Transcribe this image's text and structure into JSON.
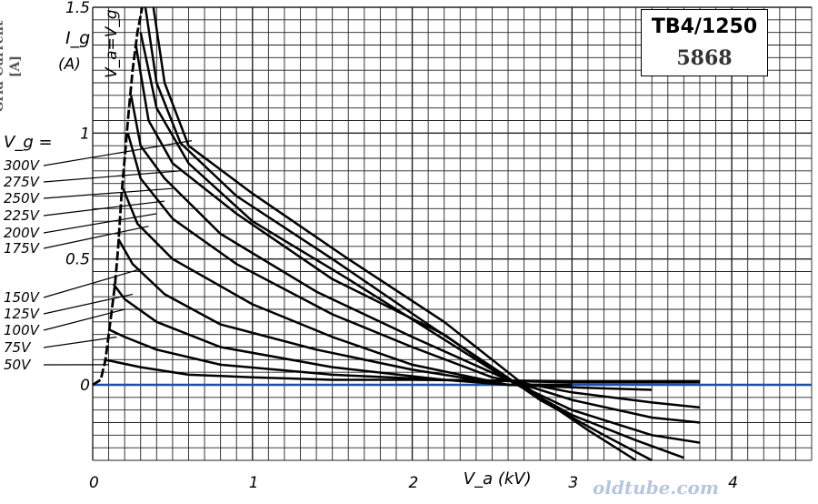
{
  "tube": {
    "type": "TB4/1250",
    "number": "5868"
  },
  "y_axis_label": {
    "line1": "Grid Current",
    "line2": "[A]"
  },
  "watermark": "oldtube.com",
  "colors": {
    "grid": "#222222",
    "curve": "#000000",
    "zero_line": "#1f4fa8",
    "watermark": "#b8c6dc"
  },
  "chart_data": {
    "type": "line",
    "title": "",
    "xlabel": "V_a (kV)",
    "ylabel": "I_g (A)",
    "xlim": [
      0,
      4.5
    ],
    "ylim": [
      -0.3,
      1.5
    ],
    "x_ticks": [
      {
        "v": 0,
        "t": "0"
      },
      {
        "v": 1,
        "t": "1"
      },
      {
        "v": 2,
        "t": "2"
      },
      {
        "v": 3,
        "t": "3"
      },
      {
        "v": 4,
        "t": "4"
      }
    ],
    "y_ticks": [
      {
        "v": 0,
        "t": "0"
      },
      {
        "v": 0.5,
        "t": "0.5"
      },
      {
        "v": 1,
        "t": "1"
      },
      {
        "v": 1.5,
        "t": "1.5"
      }
    ],
    "grid": true,
    "zero_line": true,
    "vg_header": "V_g =",
    "envelope_label": "V_a=V_g",
    "envelope": [
      [
        0,
        0
      ],
      [
        0.05,
        0.02
      ],
      [
        0.08,
        0.1
      ],
      [
        0.1,
        0.2
      ],
      [
        0.12,
        0.3
      ],
      [
        0.14,
        0.4
      ],
      [
        0.16,
        0.55
      ],
      [
        0.18,
        0.75
      ],
      [
        0.2,
        0.9
      ],
      [
        0.22,
        1.05
      ],
      [
        0.25,
        1.25
      ],
      [
        0.28,
        1.4
      ],
      [
        0.31,
        1.5
      ]
    ],
    "series": [
      {
        "name": "300V",
        "points": [
          [
            0.38,
            1.5
          ],
          [
            0.45,
            1.2
          ],
          [
            0.6,
            0.95
          ],
          [
            1.0,
            0.76
          ],
          [
            1.6,
            0.5
          ],
          [
            2.2,
            0.25
          ],
          [
            2.6,
            0.05
          ],
          [
            2.8,
            -0.05
          ],
          [
            3.1,
            -0.18
          ],
          [
            3.4,
            -0.3
          ]
        ]
      },
      {
        "name": "275V",
        "points": [
          [
            0.33,
            1.5
          ],
          [
            0.4,
            1.2
          ],
          [
            0.55,
            0.96
          ],
          [
            0.9,
            0.75
          ],
          [
            1.5,
            0.5
          ],
          [
            2.1,
            0.24
          ],
          [
            2.55,
            0.05
          ],
          [
            2.8,
            -0.06
          ],
          [
            3.2,
            -0.2
          ],
          [
            3.5,
            -0.3
          ]
        ]
      },
      {
        "name": "250V",
        "points": [
          [
            0.3,
            1.4
          ],
          [
            0.4,
            1.1
          ],
          [
            0.6,
            0.88
          ],
          [
            1.0,
            0.65
          ],
          [
            1.6,
            0.42
          ],
          [
            2.2,
            0.18
          ],
          [
            2.6,
            0.02
          ],
          [
            3.0,
            -0.12
          ],
          [
            3.4,
            -0.22
          ],
          [
            3.7,
            -0.29
          ]
        ]
      },
      {
        "name": "225V",
        "points": [
          [
            0.27,
            1.35
          ],
          [
            0.35,
            1.05
          ],
          [
            0.5,
            0.88
          ],
          [
            0.9,
            0.68
          ],
          [
            1.5,
            0.42
          ],
          [
            2.2,
            0.2
          ],
          [
            2.6,
            0.02
          ],
          [
            3.0,
            -0.1
          ],
          [
            3.5,
            -0.2
          ],
          [
            3.8,
            -0.23
          ]
        ]
      },
      {
        "name": "200V",
        "points": [
          [
            0.24,
            1.15
          ],
          [
            0.3,
            0.95
          ],
          [
            0.45,
            0.82
          ],
          [
            0.8,
            0.6
          ],
          [
            1.4,
            0.37
          ],
          [
            2.0,
            0.19
          ],
          [
            2.6,
            0.02
          ],
          [
            3.0,
            -0.06
          ],
          [
            3.5,
            -0.13
          ],
          [
            3.8,
            -0.15
          ]
        ]
      },
      {
        "name": "175V",
        "points": [
          [
            0.22,
            1.0
          ],
          [
            0.3,
            0.82
          ],
          [
            0.5,
            0.66
          ],
          [
            0.9,
            0.48
          ],
          [
            1.5,
            0.28
          ],
          [
            2.0,
            0.15
          ],
          [
            2.5,
            0.03
          ],
          [
            3.0,
            -0.03
          ],
          [
            3.5,
            -0.07
          ],
          [
            3.8,
            -0.09
          ]
        ]
      },
      {
        "name": "150V",
        "points": [
          [
            0.19,
            0.78
          ],
          [
            0.28,
            0.64
          ],
          [
            0.5,
            0.5
          ],
          [
            1.0,
            0.32
          ],
          [
            1.5,
            0.19
          ],
          [
            2.0,
            0.08
          ],
          [
            2.6,
            0.0
          ],
          [
            3.0,
            -0.01
          ],
          [
            3.5,
            -0.02
          ]
        ]
      },
      {
        "name": "125V",
        "points": [
          [
            0.16,
            0.58
          ],
          [
            0.25,
            0.48
          ],
          [
            0.45,
            0.36
          ],
          [
            0.8,
            0.24
          ],
          [
            1.4,
            0.14
          ],
          [
            2.0,
            0.06
          ],
          [
            2.6,
            0.0
          ],
          [
            3.0,
            0.0
          ]
        ]
      },
      {
        "name": "100V",
        "points": [
          [
            0.13,
            0.4
          ],
          [
            0.2,
            0.34
          ],
          [
            0.4,
            0.25
          ],
          [
            0.8,
            0.15
          ],
          [
            1.5,
            0.07
          ],
          [
            2.2,
            0.02
          ],
          [
            2.6,
            0.0
          ],
          [
            3.0,
            0.0
          ]
        ]
      },
      {
        "name": "75V",
        "points": [
          [
            0.1,
            0.22
          ],
          [
            0.2,
            0.19
          ],
          [
            0.4,
            0.14
          ],
          [
            0.8,
            0.08
          ],
          [
            1.5,
            0.04
          ],
          [
            2.2,
            0.02
          ],
          [
            3.0,
            0.01
          ],
          [
            3.8,
            0.01
          ]
        ]
      },
      {
        "name": "50V",
        "points": [
          [
            0.07,
            0.1
          ],
          [
            0.15,
            0.09
          ],
          [
            0.3,
            0.07
          ],
          [
            0.6,
            0.04
          ],
          [
            1.0,
            0.03
          ],
          [
            1.5,
            0.02
          ],
          [
            2.0,
            0.02
          ],
          [
            3.0,
            0.015
          ],
          [
            3.8,
            0.015
          ]
        ]
      }
    ],
    "label_points": [
      {
        "name": "300V",
        "t": [
          0.62,
          0.97
        ]
      },
      {
        "name": "275V",
        "t": [
          0.55,
          0.85
        ]
      },
      {
        "name": "250V",
        "t": [
          0.5,
          0.78
        ]
      },
      {
        "name": "225V",
        "t": [
          0.45,
          0.73
        ]
      },
      {
        "name": "200V",
        "t": [
          0.4,
          0.68
        ]
      },
      {
        "name": "175V",
        "t": [
          0.35,
          0.63
        ]
      },
      {
        "name": "150V",
        "t": [
          0.3,
          0.46
        ]
      },
      {
        "name": "125V",
        "t": [
          0.25,
          0.36
        ]
      },
      {
        "name": "100V",
        "t": [
          0.2,
          0.3
        ]
      },
      {
        "name": "75V",
        "t": [
          0.15,
          0.19
        ]
      },
      {
        "name": "50V",
        "t": [
          0.1,
          0.08
        ]
      }
    ]
  }
}
